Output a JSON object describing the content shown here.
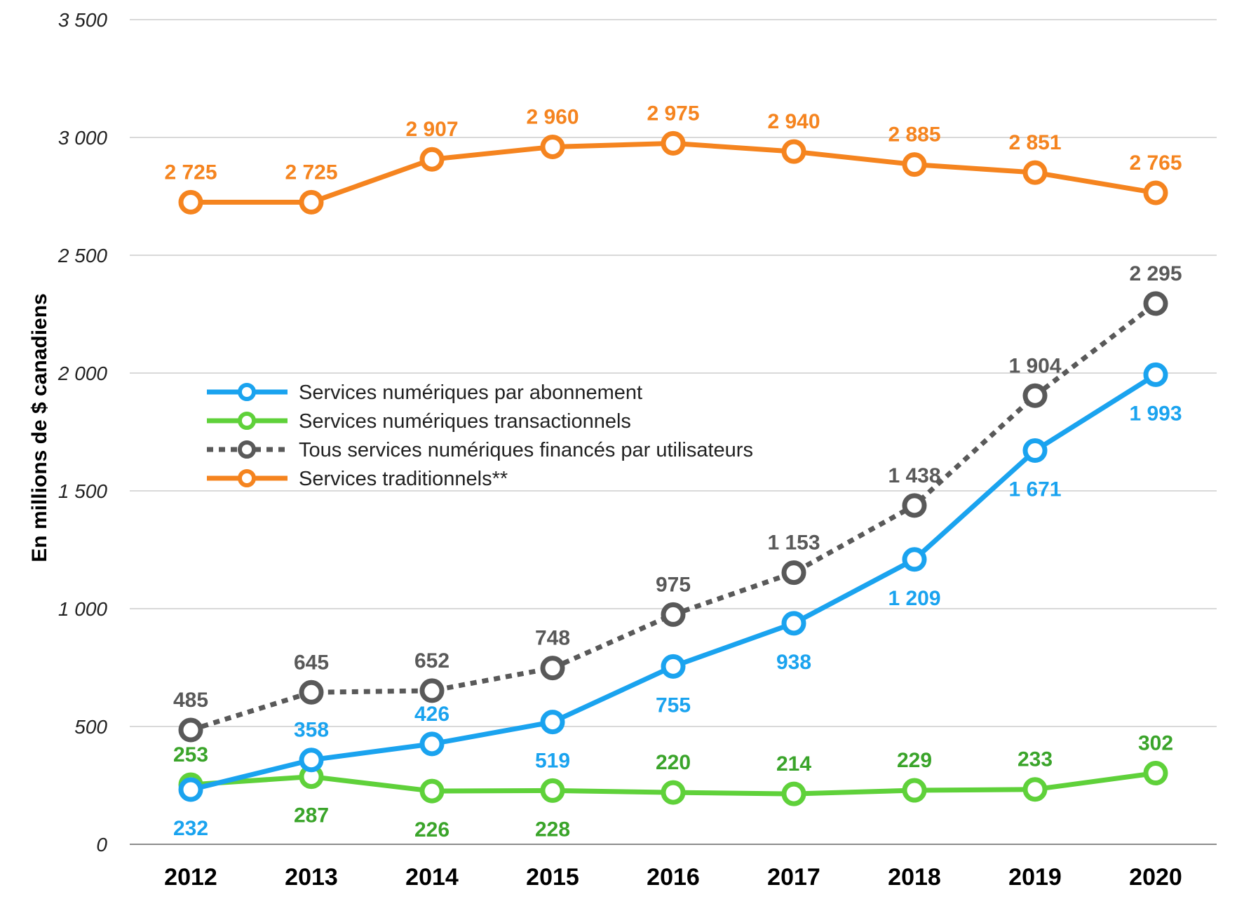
{
  "chart_data": {
    "type": "line",
    "title": "",
    "xlabel": "",
    "ylabel": "En millions de $ canadiens",
    "ylim": [
      0,
      3500
    ],
    "y_ticks": [
      {
        "value": 0,
        "label": "0"
      },
      {
        "value": 500,
        "label": "500"
      },
      {
        "value": 1000,
        "label": "1 000"
      },
      {
        "value": 1500,
        "label": "1 500"
      },
      {
        "value": 2000,
        "label": "2 000"
      },
      {
        "value": 2500,
        "label": "2 500"
      },
      {
        "value": 3000,
        "label": "3 000"
      },
      {
        "value": 3500,
        "label": "3 500"
      }
    ],
    "grid": true,
    "legend_position": "middle-left",
    "categories": [
      "2012",
      "2013",
      "2014",
      "2015",
      "2016",
      "2017",
      "2018",
      "2019",
      "2020"
    ],
    "series": [
      {
        "name": "Services numériques par abonnement",
        "color": "#1aa3ef",
        "dash": "solid",
        "values": [
          232,
          358,
          426,
          519,
          755,
          938,
          1209,
          1671,
          1993
        ],
        "labels": [
          "232",
          "358",
          "426",
          "519",
          "755",
          "938",
          "1 209",
          "1 671",
          "1 993"
        ],
        "label_side": [
          "below",
          "above",
          "above",
          "below",
          "below",
          "below",
          "below",
          "below",
          "below"
        ]
      },
      {
        "name": "Services numériques transactionnels",
        "color": "#5fd13a",
        "label_color": "#3aa42a",
        "dash": "solid",
        "values": [
          253,
          287,
          226,
          228,
          220,
          214,
          229,
          233,
          302
        ],
        "labels": [
          "253",
          "287",
          "226",
          "228",
          "220",
          "214",
          "229",
          "233",
          "302"
        ],
        "label_side": [
          "above",
          "below",
          "below",
          "below",
          "above",
          "above",
          "above",
          "above",
          "above"
        ]
      },
      {
        "name": "Tous services numériques financés par utilisateurs",
        "color": "#595959",
        "dash": "dotted",
        "values": [
          485,
          645,
          652,
          748,
          975,
          1153,
          1438,
          1904,
          2295
        ],
        "labels": [
          "485",
          "645",
          "652",
          "748",
          "975",
          "1 153",
          "1 438",
          "1 904",
          "2 295"
        ],
        "label_side": [
          "above",
          "above",
          "above",
          "above",
          "above",
          "above",
          "above",
          "above",
          "above"
        ]
      },
      {
        "name": "Services traditionnels**",
        "color": "#f5841f",
        "dash": "solid",
        "values": [
          2725,
          2725,
          2907,
          2960,
          2975,
          2940,
          2885,
          2851,
          2765
        ],
        "labels": [
          "2 725",
          "2 725",
          "2 907",
          "2 960",
          "2 975",
          "2 940",
          "2 885",
          "2 851",
          "2 765"
        ],
        "label_side": [
          "above",
          "above",
          "above",
          "above",
          "above",
          "above",
          "above",
          "above",
          "above"
        ]
      }
    ]
  }
}
